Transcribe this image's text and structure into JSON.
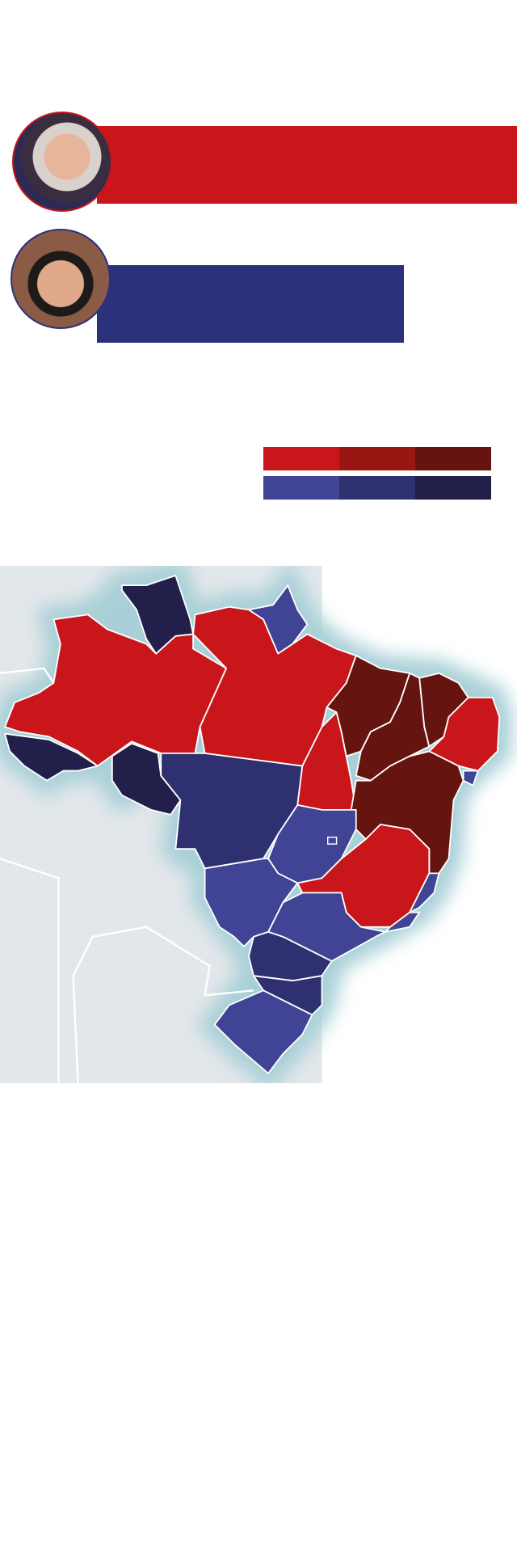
{
  "chart_data": {
    "type": "bar",
    "orientation": "horizontal",
    "series": [
      {
        "candidate_photo": "lula-portrait",
        "color": "#c8161a",
        "relative_length": 1.0
      },
      {
        "candidate_photo": "bolsonaro-portrait",
        "color": "#2c317c",
        "relative_length": 0.73
      }
    ]
  },
  "legend": {
    "red_scale": [
      "#c8161a",
      "#981713",
      "#65140f"
    ],
    "blue_scale": [
      "#414394",
      "#2e306f",
      "#221f4a"
    ]
  },
  "map": {
    "type": "choropleth",
    "land_color": "#e2e7ea",
    "coast_glow": "#a9d0d8",
    "states": [
      {
        "id": "RR",
        "color": "#221f4a"
      },
      {
        "id": "AP",
        "color": "#414394"
      },
      {
        "id": "AM",
        "color": "#c8161a"
      },
      {
        "id": "AC",
        "color": "#221f4a"
      },
      {
        "id": "RO",
        "color": "#221f4a"
      },
      {
        "id": "PA",
        "color": "#c8161a"
      },
      {
        "id": "MT",
        "color": "#2e306f"
      },
      {
        "id": "TO",
        "color": "#c8161a"
      },
      {
        "id": "MA",
        "color": "#65140f"
      },
      {
        "id": "PI",
        "color": "#65140f"
      },
      {
        "id": "CE",
        "color": "#65140f"
      },
      {
        "id": "NE-coast",
        "color": "#c8161a"
      },
      {
        "id": "SE",
        "color": "#414394"
      },
      {
        "id": "BA",
        "color": "#65140f"
      },
      {
        "id": "GO",
        "color": "#414394"
      },
      {
        "id": "MG",
        "color": "#c8161a"
      },
      {
        "id": "ES",
        "color": "#414394"
      },
      {
        "id": "RJ",
        "color": "#414394"
      },
      {
        "id": "SP",
        "color": "#414394"
      },
      {
        "id": "MS",
        "color": "#414394"
      },
      {
        "id": "PR",
        "color": "#2e306f"
      },
      {
        "id": "SC",
        "color": "#2e306f"
      },
      {
        "id": "RS",
        "color": "#414394"
      }
    ]
  }
}
